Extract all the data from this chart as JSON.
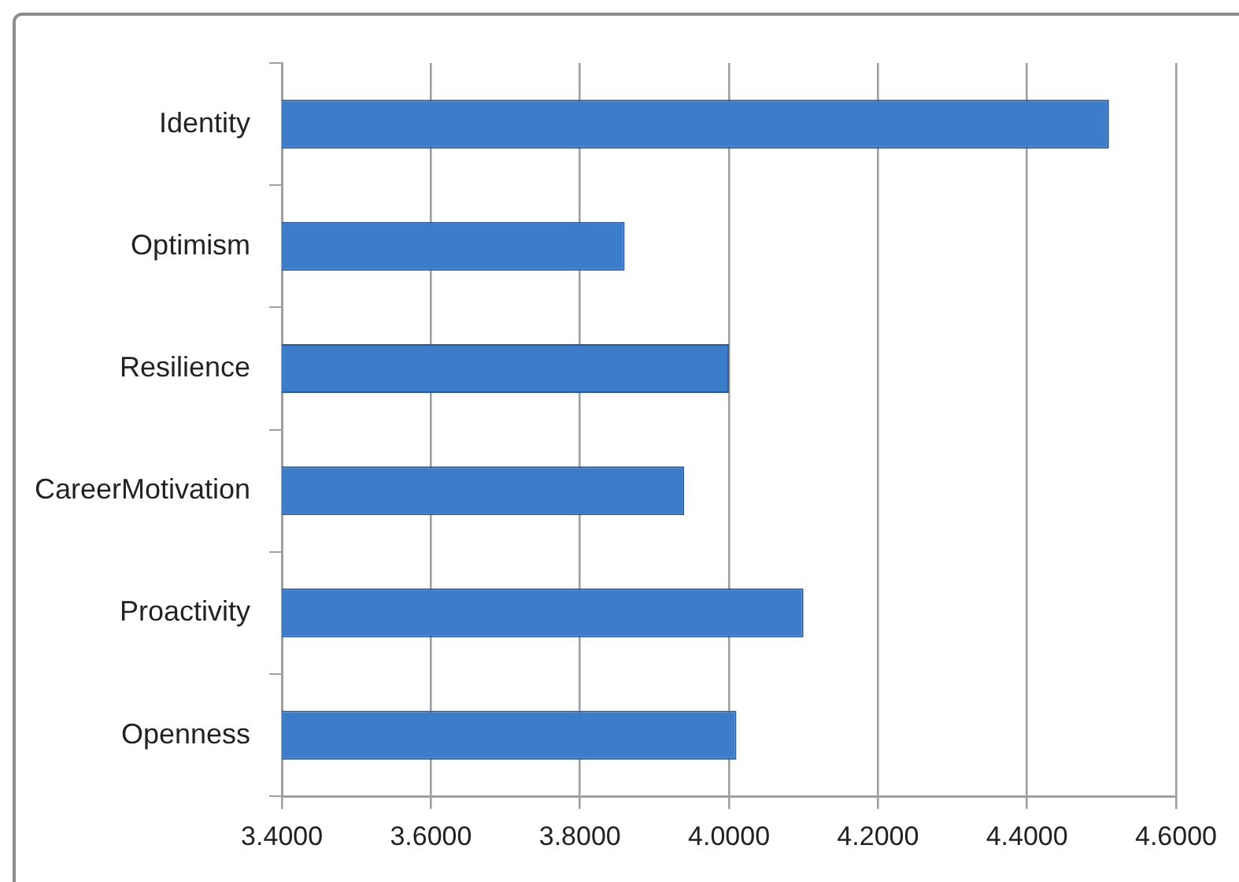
{
  "chart_data": {
    "type": "bar",
    "orientation": "horizontal",
    "categories": [
      "Identity",
      "Optimism",
      "Resilience",
      "CareerMotivation",
      "Proactivity",
      "Openness"
    ],
    "values": [
      4.51,
      3.86,
      4.0,
      3.94,
      4.1,
      4.01
    ],
    "color": "#3d7cc9",
    "xlim": [
      3.4,
      4.6
    ],
    "xticks": [
      {
        "value": 3.4,
        "label": "3.4000"
      },
      {
        "value": 3.6,
        "label": "3.6000"
      },
      {
        "value": 3.8,
        "label": "3.8000"
      },
      {
        "value": 4.0,
        "label": "4.0000"
      },
      {
        "value": 4.2,
        "label": "4.2000"
      },
      {
        "value": 4.4,
        "label": "4.4000"
      },
      {
        "value": 4.6,
        "label": "4.6000"
      }
    ],
    "grid": "x",
    "legend": false
  }
}
